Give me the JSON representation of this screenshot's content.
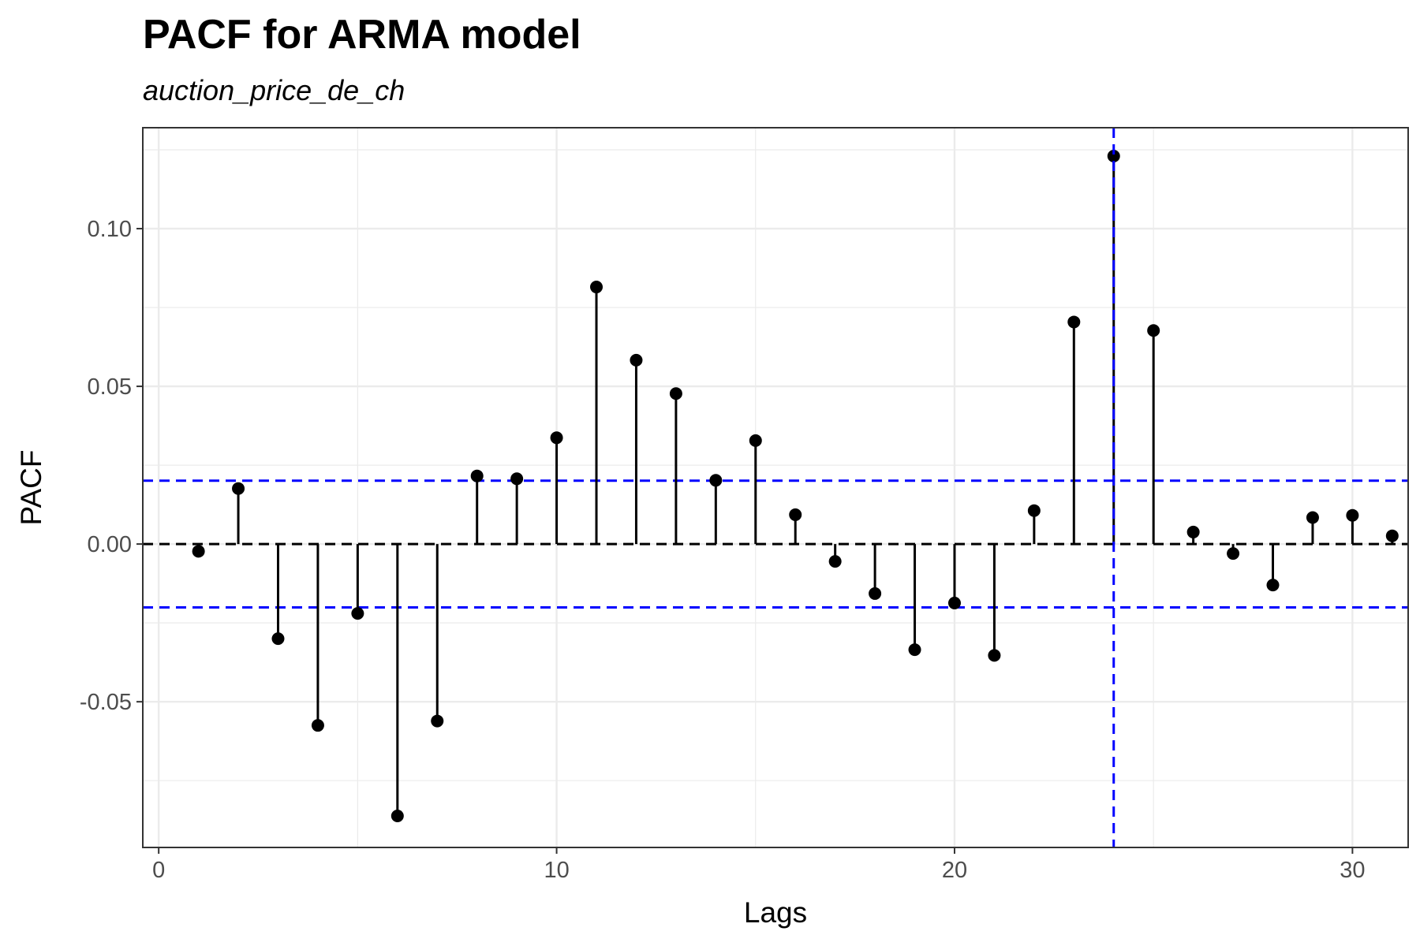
{
  "chart_data": {
    "type": "stem",
    "title": "PACF for ARMA model",
    "subtitle": "auction_price_de_ch",
    "xlabel": "Lags",
    "ylabel": "PACF",
    "xlim": [
      -0.4,
      31.4
    ],
    "ylim": [
      -0.0962,
      0.132
    ],
    "x_ticks": [
      0,
      10,
      20,
      30
    ],
    "x_tick_labels": [
      "0",
      "10",
      "20",
      "30"
    ],
    "y_ticks": [
      -0.05,
      0.0,
      0.05,
      0.1
    ],
    "y_tick_labels": [
      "-0.05",
      "0.00",
      "0.05",
      "0.10"
    ],
    "x_minor_ticks": [
      5,
      15,
      25
    ],
    "y_minor_ticks": [
      -0.075,
      -0.025,
      0.025,
      0.075,
      0.125
    ],
    "grid": true,
    "series": [
      {
        "x": [
          1,
          2,
          3,
          4,
          5,
          6,
          7,
          8,
          9,
          10,
          11,
          12,
          13,
          14,
          15,
          16,
          17,
          18,
          19,
          20,
          21,
          22,
          23,
          24,
          25,
          26,
          27,
          28,
          29,
          30,
          31
        ],
        "values": [
          -0.0023,
          0.0176,
          -0.03,
          -0.0575,
          -0.022,
          -0.0862,
          -0.0561,
          0.0216,
          0.0207,
          0.0337,
          0.0815,
          0.0583,
          0.0477,
          0.0202,
          0.0328,
          0.0093,
          -0.0055,
          -0.0157,
          -0.0335,
          -0.0187,
          -0.0353,
          0.0106,
          0.0704,
          0.123,
          0.0677,
          0.0038,
          -0.003,
          -0.013,
          0.0084,
          0.0091,
          0.0026
        ]
      }
    ],
    "zero_line": 0,
    "confidence_bounds": [
      -0.0201,
      0.0201
    ],
    "vertical_marker_lag": 24,
    "colors": {
      "stems": "#000000",
      "zero_line": "#000000",
      "reference_lines": "#0000ff",
      "grid": "#ebebeb",
      "panel_border": "#333333"
    }
  }
}
